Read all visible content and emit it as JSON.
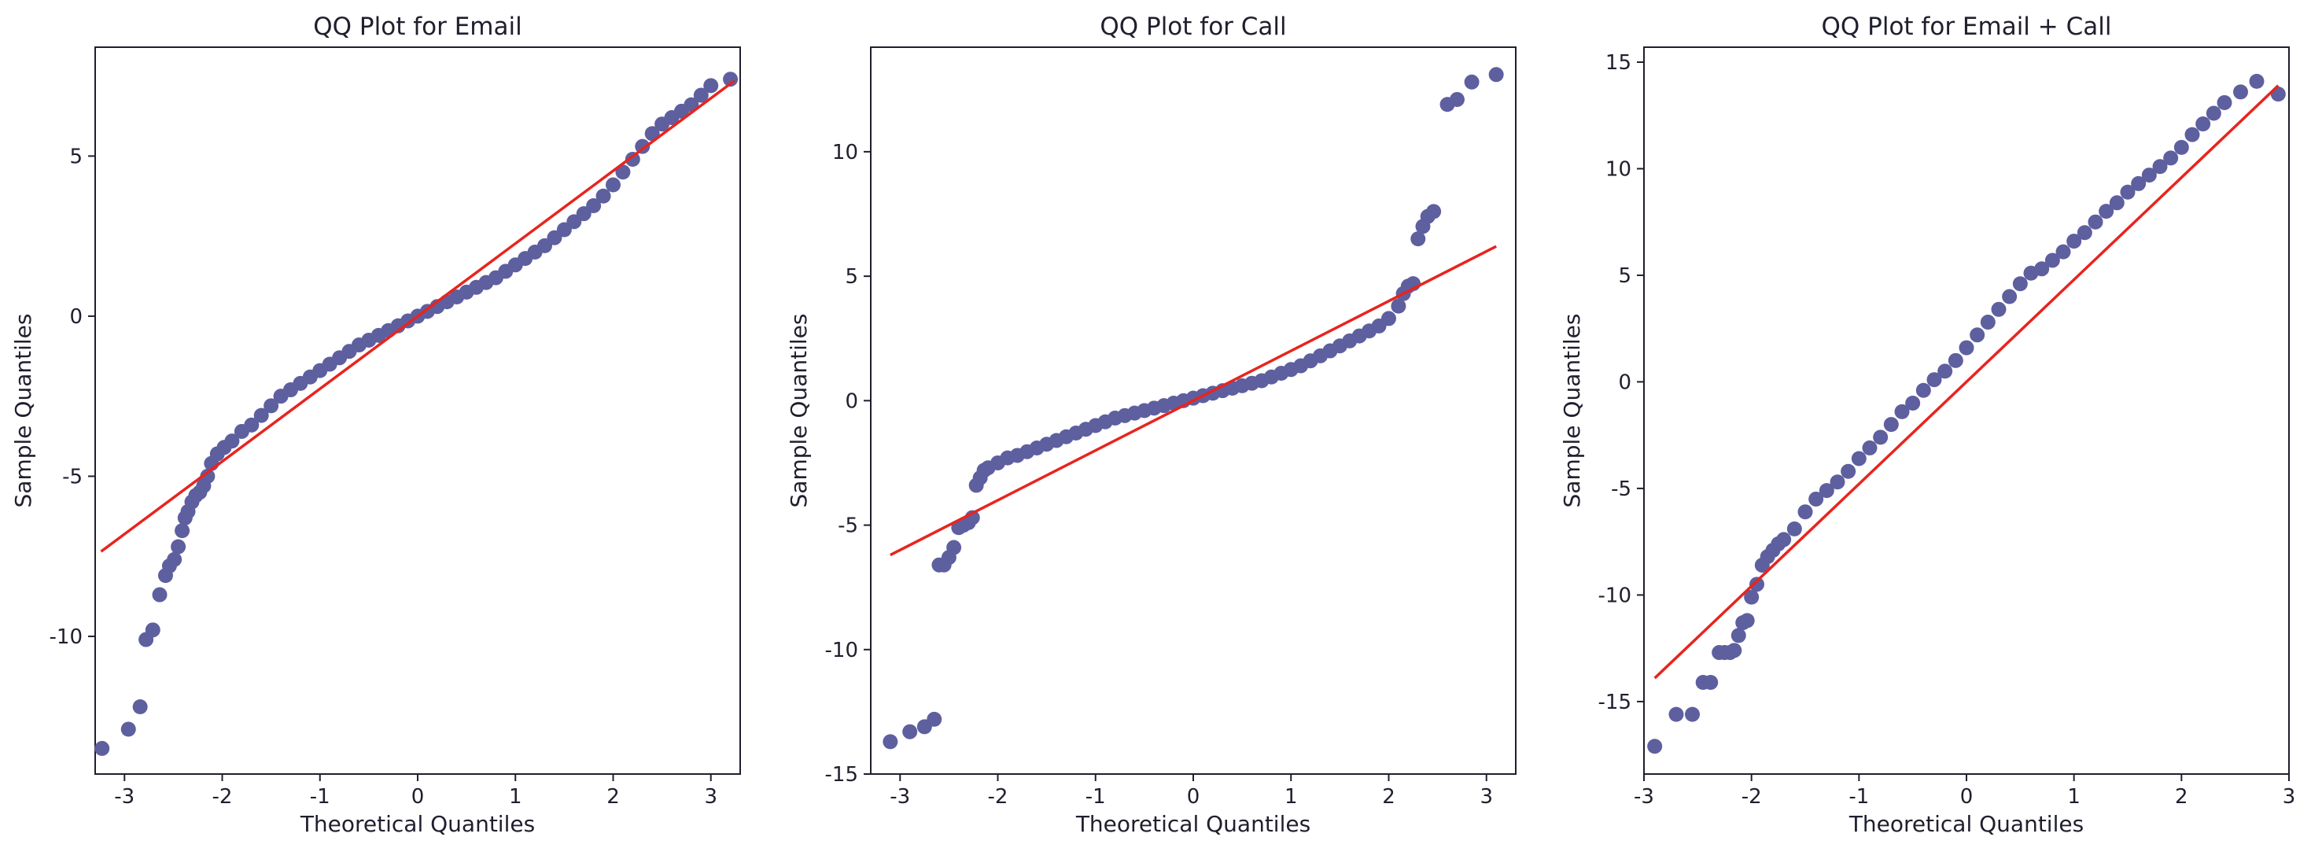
{
  "colors": {
    "points": "#5e5f9f",
    "fit_line": "#e8241e",
    "axis": "#1f1f2e"
  },
  "chart_data": [
    {
      "type": "scatter",
      "title": "QQ Plot for Email",
      "xlabel": "Theoretical Quantiles",
      "ylabel": "Sample Quantiles",
      "xlim": [
        -3.3,
        3.3
      ],
      "ylim": [
        -14.3,
        8.4
      ],
      "xticks": [
        -3,
        -2,
        -1,
        0,
        1,
        2,
        3
      ],
      "yticks": [
        -10,
        -5,
        0,
        5
      ],
      "fit_line": {
        "x": [
          -3.24,
          3.24
        ],
        "y": [
          -7.35,
          7.35
        ]
      },
      "series": [
        {
          "x": [
            -3.23,
            -2.96,
            -2.84,
            -2.78,
            -2.71,
            -2.64,
            -2.58,
            -2.54,
            -2.49,
            -2.45,
            -2.41,
            -2.38,
            -2.35,
            -2.31,
            -2.27,
            -2.23,
            -2.19,
            -2.15,
            -2.11,
            -2.05,
            -1.98,
            -1.9,
            -1.8,
            -1.7,
            -1.6,
            -1.5,
            -1.4,
            -1.3,
            -1.2,
            -1.1,
            -1.0,
            -0.9,
            -0.8,
            -0.7,
            -0.6,
            -0.5,
            -0.4,
            -0.3,
            -0.2,
            -0.1,
            0.0,
            0.1,
            0.2,
            0.3,
            0.4,
            0.5,
            0.6,
            0.7,
            0.8,
            0.9,
            1.0,
            1.1,
            1.2,
            1.3,
            1.4,
            1.5,
            1.6,
            1.7,
            1.8,
            1.9,
            2.0,
            2.1,
            2.2,
            2.3,
            2.4,
            2.5,
            2.6,
            2.7,
            2.8,
            2.9,
            3.0,
            3.2
          ],
          "y": [
            -13.5,
            -12.9,
            -12.2,
            -10.1,
            -9.8,
            -8.7,
            -8.1,
            -7.8,
            -7.6,
            -7.2,
            -6.7,
            -6.3,
            -6.1,
            -5.8,
            -5.6,
            -5.5,
            -5.3,
            -5.0,
            -4.6,
            -4.3,
            -4.1,
            -3.9,
            -3.6,
            -3.4,
            -3.1,
            -2.8,
            -2.5,
            -2.3,
            -2.1,
            -1.9,
            -1.7,
            -1.5,
            -1.3,
            -1.1,
            -0.9,
            -0.75,
            -0.6,
            -0.45,
            -0.3,
            -0.15,
            0.0,
            0.15,
            0.3,
            0.45,
            0.6,
            0.75,
            0.9,
            1.05,
            1.2,
            1.4,
            1.6,
            1.8,
            2.0,
            2.2,
            2.45,
            2.7,
            2.95,
            3.2,
            3.45,
            3.75,
            4.1,
            4.5,
            4.9,
            5.3,
            5.7,
            6.0,
            6.2,
            6.4,
            6.6,
            6.9,
            7.2,
            7.4
          ]
        }
      ]
    },
    {
      "type": "scatter",
      "title": "QQ Plot for Call",
      "xlabel": "Theoretical Quantiles",
      "ylabel": "Sample Quantiles",
      "xlim": [
        -3.3,
        3.3
      ],
      "ylim": [
        -15.0,
        14.2
      ],
      "xticks": [
        -3,
        -2,
        -1,
        0,
        1,
        2,
        3
      ],
      "yticks": [
        -15,
        -10,
        -5,
        0,
        5,
        10
      ],
      "fit_line": {
        "x": [
          -3.1,
          3.1
        ],
        "y": [
          -6.2,
          6.2
        ]
      },
      "series": [
        {
          "x": [
            -3.1,
            -2.9,
            -2.75,
            -2.65,
            -2.6,
            -2.55,
            -2.5,
            -2.45,
            -2.4,
            -2.35,
            -2.3,
            -2.26,
            -2.22,
            -2.18,
            -2.14,
            -2.1,
            -2.0,
            -1.9,
            -1.8,
            -1.7,
            -1.6,
            -1.5,
            -1.4,
            -1.3,
            -1.2,
            -1.1,
            -1.0,
            -0.9,
            -0.8,
            -0.7,
            -0.6,
            -0.5,
            -0.4,
            -0.3,
            -0.2,
            -0.1,
            0.0,
            0.1,
            0.2,
            0.3,
            0.4,
            0.5,
            0.6,
            0.7,
            0.8,
            0.9,
            1.0,
            1.1,
            1.2,
            1.3,
            1.4,
            1.5,
            1.6,
            1.7,
            1.8,
            1.9,
            2.0,
            2.1,
            2.15,
            2.2,
            2.25,
            2.3,
            2.35,
            2.4,
            2.46,
            2.6,
            2.7,
            2.85,
            3.1
          ],
          "y": [
            -13.7,
            -13.3,
            -13.1,
            -12.8,
            -6.6,
            -6.6,
            -6.3,
            -5.9,
            -5.1,
            -5.0,
            -4.9,
            -4.7,
            -3.4,
            -3.1,
            -2.8,
            -2.7,
            -2.5,
            -2.3,
            -2.2,
            -2.05,
            -1.9,
            -1.75,
            -1.6,
            -1.45,
            -1.3,
            -1.15,
            -1.0,
            -0.85,
            -0.7,
            -0.6,
            -0.5,
            -0.4,
            -0.3,
            -0.2,
            -0.1,
            0.0,
            0.1,
            0.2,
            0.3,
            0.4,
            0.5,
            0.6,
            0.7,
            0.8,
            0.95,
            1.1,
            1.25,
            1.4,
            1.6,
            1.8,
            2.0,
            2.2,
            2.4,
            2.6,
            2.8,
            3.0,
            3.3,
            3.8,
            4.3,
            4.6,
            4.7,
            6.5,
            7.0,
            7.4,
            7.6,
            11.9,
            12.1,
            12.8,
            13.1
          ]
        }
      ]
    },
    {
      "type": "scatter",
      "title": "QQ Plot for Email + Call",
      "xlabel": "Theoretical Quantiles",
      "ylabel": "Sample Quantiles",
      "xlim": [
        -3.0,
        3.0
      ],
      "ylim": [
        -18.4,
        15.7
      ],
      "xticks": [
        -3,
        -2,
        -1,
        0,
        1,
        2,
        3
      ],
      "yticks": [
        -15,
        -10,
        -5,
        0,
        5,
        10,
        15
      ],
      "fit_line": {
        "x": [
          -2.9,
          2.9
        ],
        "y": [
          -13.9,
          13.9
        ]
      },
      "series": [
        {
          "x": [
            -2.9,
            -2.7,
            -2.55,
            -2.45,
            -2.38,
            -2.3,
            -2.25,
            -2.2,
            -2.16,
            -2.12,
            -2.08,
            -2.04,
            -2.0,
            -1.95,
            -1.9,
            -1.85,
            -1.8,
            -1.75,
            -1.7,
            -1.6,
            -1.5,
            -1.4,
            -1.3,
            -1.2,
            -1.1,
            -1.0,
            -0.9,
            -0.8,
            -0.7,
            -0.6,
            -0.5,
            -0.4,
            -0.3,
            -0.2,
            -0.1,
            0.0,
            0.1,
            0.2,
            0.3,
            0.4,
            0.5,
            0.6,
            0.7,
            0.8,
            0.9,
            1.0,
            1.1,
            1.2,
            1.3,
            1.4,
            1.5,
            1.6,
            1.7,
            1.8,
            1.9,
            2.0,
            2.1,
            2.2,
            2.3,
            2.4,
            2.55,
            2.7,
            2.9
          ],
          "y": [
            -17.1,
            -15.6,
            -15.6,
            -14.1,
            -14.1,
            -12.7,
            -12.7,
            -12.7,
            -12.6,
            -11.9,
            -11.3,
            -11.2,
            -10.1,
            -9.5,
            -8.6,
            -8.2,
            -7.9,
            -7.6,
            -7.4,
            -6.9,
            -6.1,
            -5.5,
            -5.1,
            -4.7,
            -4.2,
            -3.6,
            -3.1,
            -2.6,
            -2.0,
            -1.4,
            -1.0,
            -0.4,
            0.1,
            0.5,
            1.0,
            1.6,
            2.2,
            2.8,
            3.4,
            4.0,
            4.6,
            5.1,
            5.3,
            5.7,
            6.1,
            6.6,
            7.0,
            7.5,
            8.0,
            8.4,
            8.9,
            9.3,
            9.7,
            10.1,
            10.5,
            11.0,
            11.6,
            12.1,
            12.6,
            13.1,
            13.6,
            14.1,
            13.5
          ]
        }
      ]
    }
  ]
}
